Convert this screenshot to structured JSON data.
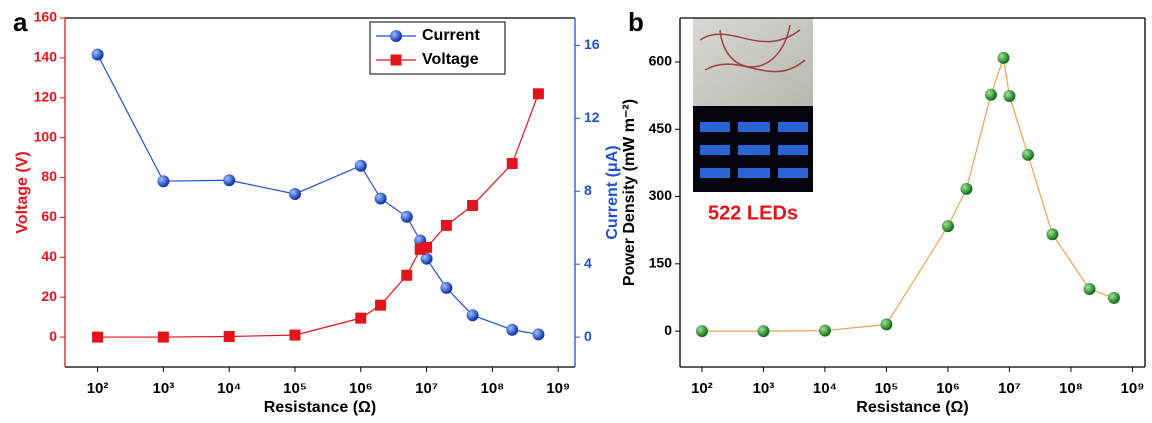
{
  "chart_data": [
    {
      "type": "line",
      "panel": "a",
      "xlabel": "Resistance (Ω)",
      "ylabel": "Voltage (V)",
      "y2label": "Current (μA)",
      "xscale": "log",
      "xlim": [
        32,
        1800000000
      ],
      "xticks": [
        {
          "value": 100,
          "label": "10²"
        },
        {
          "value": 1000,
          "label": "10³"
        },
        {
          "value": 10000,
          "label": "10⁴"
        },
        {
          "value": 100000,
          "label": "10⁵"
        },
        {
          "value": 1000000,
          "label": "10⁶"
        },
        {
          "value": 10000000,
          "label": "10⁷"
        },
        {
          "value": 100000000,
          "label": "10⁸"
        },
        {
          "value": 1000000000,
          "label": "10⁹"
        }
      ],
      "ylim": [
        -15,
        160
      ],
      "yticks": [
        0,
        20,
        40,
        60,
        80,
        100,
        120,
        140,
        160
      ],
      "y2lim": [
        -1.64,
        17.5
      ],
      "y2ticks": [
        0,
        4,
        8,
        12,
        16
      ],
      "legend": "upper right",
      "x": [
        100,
        1000,
        10000,
        100000,
        1000000,
        2000000,
        5000000,
        8000000,
        10000000,
        20000000,
        50000000,
        200000000,
        500000000
      ],
      "series": [
        {
          "name": "Current",
          "color": "#1f4fd6",
          "marker": "circle",
          "axis": "y2",
          "values": [
            15.5,
            8.55,
            8.6,
            7.85,
            9.4,
            7.6,
            6.6,
            5.3,
            4.3,
            2.7,
            1.2,
            0.4,
            0.15
          ]
        },
        {
          "name": "Voltage",
          "color": "#e3141b",
          "marker": "square",
          "axis": "y",
          "values": [
            0,
            0,
            0.3,
            1,
            9.5,
            16,
            31,
            44,
            45,
            56,
            66,
            87,
            122
          ]
        }
      ]
    },
    {
      "type": "line",
      "panel": "b",
      "xlabel": "Resistance (Ω)",
      "ylabel": "Power Density (mW m⁻²)",
      "xscale": "log",
      "xlim": [
        44,
        1600000000
      ],
      "xticks": [
        {
          "value": 100,
          "label": "10²"
        },
        {
          "value": 1000,
          "label": "10³"
        },
        {
          "value": 10000,
          "label": "10⁴"
        },
        {
          "value": 100000,
          "label": "10⁵"
        },
        {
          "value": 1000000,
          "label": "10⁶"
        },
        {
          "value": 10000000,
          "label": "10⁷"
        },
        {
          "value": 100000000,
          "label": "10⁸"
        },
        {
          "value": 1000000000,
          "label": "10⁹"
        }
      ],
      "ylim": [
        -80,
        698
      ],
      "yticks": [
        0,
        150,
        300,
        450,
        600
      ],
      "annotation": "522 LEDs",
      "x": [
        100,
        1000,
        10000,
        100000,
        1000000,
        2000000,
        5000000,
        8000000,
        10000000,
        20000000,
        50000000,
        200000000,
        500000000
      ],
      "series": [
        {
          "color": "#f0a050",
          "marker_color": "#22962a",
          "marker": "circle",
          "axis": "y",
          "values": [
            0,
            0,
            1,
            15,
            234,
            317,
            527,
            609,
            524,
            393,
            216,
            94,
            74
          ]
        }
      ]
    }
  ]
}
